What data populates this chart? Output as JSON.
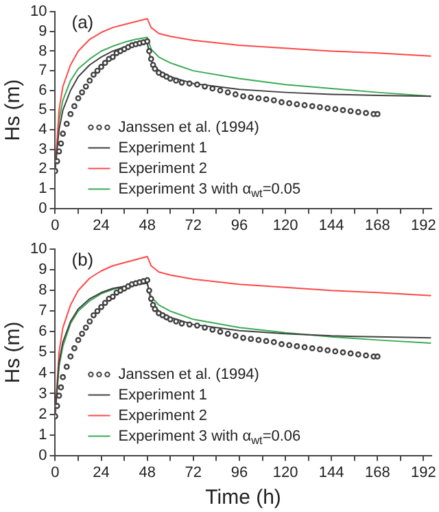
{
  "chart_data": [
    {
      "type": "line",
      "annotations": [
        "(a)"
      ],
      "ylabel": "Hs (m)",
      "xlim": [
        0,
        196
      ],
      "xticks": [
        0,
        {
          "value": 12,
          "label": null
        },
        24,
        {
          "value": 36,
          "label": null
        },
        48,
        {
          "value": 60,
          "label": null
        },
        72,
        {
          "value": 84,
          "label": null
        },
        96,
        {
          "value": 108,
          "label": null
        },
        120,
        {
          "value": 132,
          "label": null
        },
        144,
        {
          "value": 156,
          "label": null
        },
        168,
        {
          "value": 180,
          "label": null
        },
        192
      ],
      "ylim": [
        0,
        10
      ],
      "yticks": [
        0,
        1,
        2,
        3,
        4,
        5,
        6,
        7,
        8,
        9,
        10
      ],
      "legend": "bottom left",
      "series": [
        {
          "name": "Janssen et al. (1994)",
          "type": "scatter",
          "marker": "circle",
          "color": "#404040",
          "x": [
            0,
            1,
            2,
            3,
            4,
            6,
            8,
            10,
            12,
            14,
            16,
            18,
            20,
            22,
            24,
            26,
            28,
            30,
            32,
            34,
            36,
            38,
            40,
            42,
            44,
            46,
            48,
            49,
            50,
            51,
            52,
            54,
            56,
            58,
            60,
            63,
            66,
            70,
            74,
            78,
            82,
            86,
            90,
            94,
            98,
            102,
            106,
            110,
            114,
            118,
            122,
            126,
            130,
            134,
            138,
            142,
            146,
            150,
            154,
            158,
            162,
            166,
            168
          ],
          "values": [
            1.9,
            2.4,
            2.9,
            3.3,
            3.8,
            4.3,
            4.8,
            5.2,
            5.6,
            5.9,
            6.2,
            6.5,
            6.8,
            7.0,
            7.2,
            7.4,
            7.6,
            7.7,
            7.9,
            8.0,
            8.1,
            8.2,
            8.3,
            8.35,
            8.4,
            8.45,
            8.5,
            8.0,
            7.6,
            7.3,
            7.1,
            6.9,
            6.8,
            6.7,
            6.6,
            6.5,
            6.4,
            6.35,
            6.3,
            6.2,
            6.1,
            6.0,
            5.9,
            5.8,
            5.7,
            5.65,
            5.6,
            5.55,
            5.5,
            5.4,
            5.35,
            5.3,
            5.25,
            5.2,
            5.15,
            5.1,
            5.05,
            5.0,
            4.95,
            4.9,
            4.85,
            4.8,
            4.8
          ]
        },
        {
          "name": "Experiment 1",
          "type": "line",
          "marker": "none",
          "color": "#404040",
          "x": [
            0,
            2,
            4,
            8,
            12,
            18,
            24,
            30,
            36,
            42,
            48,
            50,
            54,
            60,
            72,
            96,
            120,
            144,
            168,
            196
          ],
          "values": [
            2.0,
            4.0,
            5.0,
            6.0,
            6.7,
            7.3,
            7.7,
            8.0,
            8.2,
            8.35,
            8.4,
            7.5,
            7.0,
            6.7,
            6.35,
            6.05,
            5.9,
            5.8,
            5.75,
            5.7
          ]
        },
        {
          "name": "Experiment 2",
          "type": "line",
          "marker": "none",
          "color": "#ff4848",
          "x": [
            0,
            2,
            4,
            8,
            12,
            18,
            24,
            30,
            36,
            42,
            48,
            50,
            54,
            60,
            72,
            96,
            120,
            144,
            168,
            196
          ],
          "values": [
            2.0,
            5.0,
            6.2,
            7.3,
            8.0,
            8.6,
            8.95,
            9.2,
            9.35,
            9.5,
            9.65,
            9.2,
            8.9,
            8.75,
            8.55,
            8.3,
            8.15,
            8.0,
            7.9,
            7.75
          ]
        },
        {
          "name": "Experiment 3 with α$_{wt}$=0.05",
          "type": "line",
          "marker": "none",
          "color": "#3aaa55",
          "x": [
            0,
            2,
            4,
            8,
            12,
            18,
            24,
            30,
            36,
            42,
            48,
            50,
            54,
            60,
            72,
            96,
            120,
            144,
            168,
            196
          ],
          "values": [
            2.0,
            4.5,
            5.5,
            6.5,
            7.1,
            7.6,
            8.0,
            8.25,
            8.45,
            8.6,
            8.7,
            8.1,
            7.7,
            7.4,
            7.0,
            6.6,
            6.3,
            6.1,
            5.9,
            5.7
          ]
        }
      ]
    },
    {
      "type": "line",
      "annotations": [
        "(b)"
      ],
      "ylabel": "Hs (m)",
      "xlabel": "Time (h)",
      "xlim": [
        0,
        196
      ],
      "xticks": [
        0,
        {
          "value": 12,
          "label": null
        },
        24,
        {
          "value": 36,
          "label": null
        },
        48,
        {
          "value": 60,
          "label": null
        },
        72,
        {
          "value": 84,
          "label": null
        },
        96,
        {
          "value": 108,
          "label": null
        },
        120,
        {
          "value": 132,
          "label": null
        },
        144,
        {
          "value": 156,
          "label": null
        },
        168,
        {
          "value": 180,
          "label": null
        },
        192
      ],
      "ylim": [
        0,
        10
      ],
      "yticks": [
        0,
        1,
        2,
        3,
        4,
        5,
        6,
        7,
        8,
        9,
        10
      ],
      "legend": "bottom left",
      "series": [
        {
          "name": "Janssen et al. (1994)",
          "type": "scatter",
          "marker": "circle",
          "color": "#404040",
          "x": [
            0,
            1,
            2,
            3,
            4,
            6,
            8,
            10,
            12,
            14,
            16,
            18,
            20,
            22,
            24,
            26,
            28,
            30,
            32,
            34,
            36,
            38,
            40,
            42,
            44,
            46,
            48,
            49,
            50,
            51,
            52,
            54,
            56,
            58,
            60,
            63,
            66,
            70,
            74,
            78,
            82,
            86,
            90,
            94,
            98,
            102,
            106,
            110,
            114,
            118,
            122,
            126,
            130,
            134,
            138,
            142,
            146,
            150,
            154,
            158,
            162,
            166,
            168
          ],
          "values": [
            1.9,
            2.4,
            2.9,
            3.3,
            3.8,
            4.3,
            4.8,
            5.2,
            5.6,
            5.9,
            6.2,
            6.5,
            6.8,
            7.0,
            7.2,
            7.4,
            7.6,
            7.7,
            7.9,
            8.0,
            8.1,
            8.2,
            8.3,
            8.35,
            8.4,
            8.45,
            8.5,
            8.0,
            7.6,
            7.3,
            7.1,
            6.9,
            6.8,
            6.7,
            6.6,
            6.5,
            6.4,
            6.35,
            6.3,
            6.2,
            6.1,
            6.0,
            5.9,
            5.8,
            5.7,
            5.65,
            5.6,
            5.55,
            5.5,
            5.4,
            5.35,
            5.3,
            5.25,
            5.2,
            5.15,
            5.1,
            5.05,
            5.0,
            4.95,
            4.9,
            4.85,
            4.8,
            4.8
          ]
        },
        {
          "name": "Experiment 1",
          "type": "line",
          "marker": "none",
          "color": "#404040",
          "x": [
            0,
            2,
            4,
            8,
            12,
            18,
            24,
            30,
            36,
            42,
            48,
            50,
            54,
            60,
            72,
            96,
            120,
            144,
            168,
            196
          ],
          "values": [
            2.0,
            4.5,
            5.5,
            6.5,
            7.1,
            7.6,
            7.9,
            8.1,
            8.2,
            8.3,
            8.35,
            7.5,
            7.0,
            6.7,
            6.35,
            6.05,
            5.9,
            5.8,
            5.75,
            5.7
          ]
        },
        {
          "name": "Experiment 2",
          "type": "line",
          "marker": "none",
          "color": "#ff4848",
          "x": [
            0,
            2,
            4,
            8,
            12,
            18,
            24,
            30,
            36,
            42,
            48,
            50,
            54,
            60,
            72,
            96,
            120,
            144,
            168,
            196
          ],
          "values": [
            2.0,
            5.0,
            6.2,
            7.3,
            8.0,
            8.6,
            8.95,
            9.2,
            9.35,
            9.5,
            9.65,
            9.2,
            8.9,
            8.75,
            8.55,
            8.3,
            8.15,
            8.0,
            7.9,
            7.75
          ]
        },
        {
          "name": "Experiment 3 with α$_{wt}$=0.06",
          "type": "line",
          "marker": "none",
          "color": "#3aaa55",
          "x": [
            0,
            2,
            4,
            8,
            12,
            18,
            24,
            30,
            36,
            42,
            48,
            50,
            54,
            60,
            72,
            96,
            120,
            144,
            168,
            196
          ],
          "values": [
            2.0,
            4.3,
            5.3,
            6.4,
            7.0,
            7.5,
            7.85,
            8.05,
            8.2,
            8.3,
            8.35,
            7.7,
            7.3,
            7.0,
            6.6,
            6.2,
            5.95,
            5.75,
            5.6,
            5.45
          ]
        }
      ]
    }
  ]
}
